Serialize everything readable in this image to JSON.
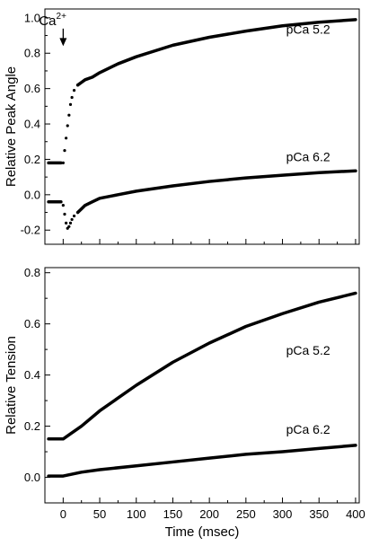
{
  "chart_data": [
    {
      "type": "line",
      "panel": "top",
      "title": "",
      "xlabel": "",
      "ylabel": "Relative Peak Angle",
      "xlim": [
        -25,
        405
      ],
      "ylim": [
        -0.28,
        1.05
      ],
      "xticks": [
        0,
        50,
        100,
        150,
        200,
        250,
        300,
        350,
        400
      ],
      "yticks": [
        "-0.2",
        "0.0",
        "0.2",
        "0.4",
        "0.6",
        "0.8",
        "1.0"
      ],
      "ytick_values": [
        -0.2,
        0.0,
        0.2,
        0.4,
        0.6,
        0.8,
        1.0
      ],
      "show_x_tick_labels": false,
      "grid": false,
      "annotation": {
        "text": "Ca",
        "superscript": "2+",
        "x": 0,
        "arrow_from": 1.0,
        "arrow_to": 0.84
      },
      "series": [
        {
          "name": "pCa 5.2",
          "label_at": [
            305,
            0.91
          ],
          "points": [
            [
              -20,
              0.18
            ],
            [
              -3,
              0.18
            ],
            [
              0,
              0.18
            ],
            [
              2,
              0.25
            ],
            [
              4,
              0.32
            ],
            [
              6,
              0.39
            ],
            [
              8,
              0.45
            ],
            [
              10,
              0.51
            ],
            [
              12,
              0.55
            ],
            [
              15,
              0.59
            ],
            [
              20,
              0.62
            ],
            [
              25,
              0.635
            ],
            [
              30,
              0.65
            ],
            [
              40,
              0.665
            ],
            [
              50,
              0.69
            ],
            [
              75,
              0.74
            ],
            [
              100,
              0.78
            ],
            [
              150,
              0.845
            ],
            [
              200,
              0.89
            ],
            [
              250,
              0.925
            ],
            [
              300,
              0.955
            ],
            [
              350,
              0.975
            ],
            [
              400,
              0.99
            ]
          ]
        },
        {
          "name": "pCa 6.2",
          "label_at": [
            305,
            0.19
          ],
          "points": [
            [
              -20,
              -0.04
            ],
            [
              -3,
              -0.04
            ],
            [
              0,
              -0.06
            ],
            [
              2,
              -0.11
            ],
            [
              4,
              -0.16
            ],
            [
              6,
              -0.19
            ],
            [
              8,
              -0.18
            ],
            [
              10,
              -0.16
            ],
            [
              12,
              -0.14
            ],
            [
              15,
              -0.12
            ],
            [
              20,
              -0.1
            ],
            [
              25,
              -0.08
            ],
            [
              30,
              -0.06
            ],
            [
              40,
              -0.04
            ],
            [
              50,
              -0.02
            ],
            [
              75,
              0.0
            ],
            [
              100,
              0.02
            ],
            [
              150,
              0.05
            ],
            [
              200,
              0.075
            ],
            [
              250,
              0.095
            ],
            [
              300,
              0.11
            ],
            [
              350,
              0.125
            ],
            [
              400,
              0.135
            ]
          ]
        }
      ]
    },
    {
      "type": "line",
      "panel": "bottom",
      "title": "",
      "xlabel": "Time (msec)",
      "ylabel": "Relative Tension",
      "xlim": [
        -25,
        405
      ],
      "ylim": [
        -0.1,
        0.82
      ],
      "xticks": [
        0,
        50,
        100,
        150,
        200,
        250,
        300,
        350,
        400
      ],
      "yticks": [
        "0.0",
        "0.2",
        "0.4",
        "0.6",
        "0.8"
      ],
      "ytick_values": [
        0.0,
        0.2,
        0.4,
        0.6,
        0.8
      ],
      "show_x_tick_labels": true,
      "grid": false,
      "series": [
        {
          "name": "pCa 5.2",
          "label_at": [
            305,
            0.48
          ],
          "points": [
            [
              -20,
              0.15
            ],
            [
              0,
              0.15
            ],
            [
              10,
              0.17
            ],
            [
              25,
              0.2
            ],
            [
              50,
              0.26
            ],
            [
              75,
              0.31
            ],
            [
              100,
              0.36
            ],
            [
              150,
              0.45
            ],
            [
              200,
              0.525
            ],
            [
              250,
              0.59
            ],
            [
              300,
              0.64
            ],
            [
              350,
              0.685
            ],
            [
              400,
              0.72
            ]
          ]
        },
        {
          "name": "pCa 6.2",
          "label_at": [
            305,
            0.17
          ],
          "points": [
            [
              -20,
              0.005
            ],
            [
              0,
              0.005
            ],
            [
              25,
              0.02
            ],
            [
              50,
              0.03
            ],
            [
              100,
              0.045
            ],
            [
              150,
              0.06
            ],
            [
              200,
              0.075
            ],
            [
              250,
              0.09
            ],
            [
              300,
              0.1
            ],
            [
              350,
              0.113
            ],
            [
              400,
              0.125
            ]
          ]
        }
      ]
    }
  ]
}
